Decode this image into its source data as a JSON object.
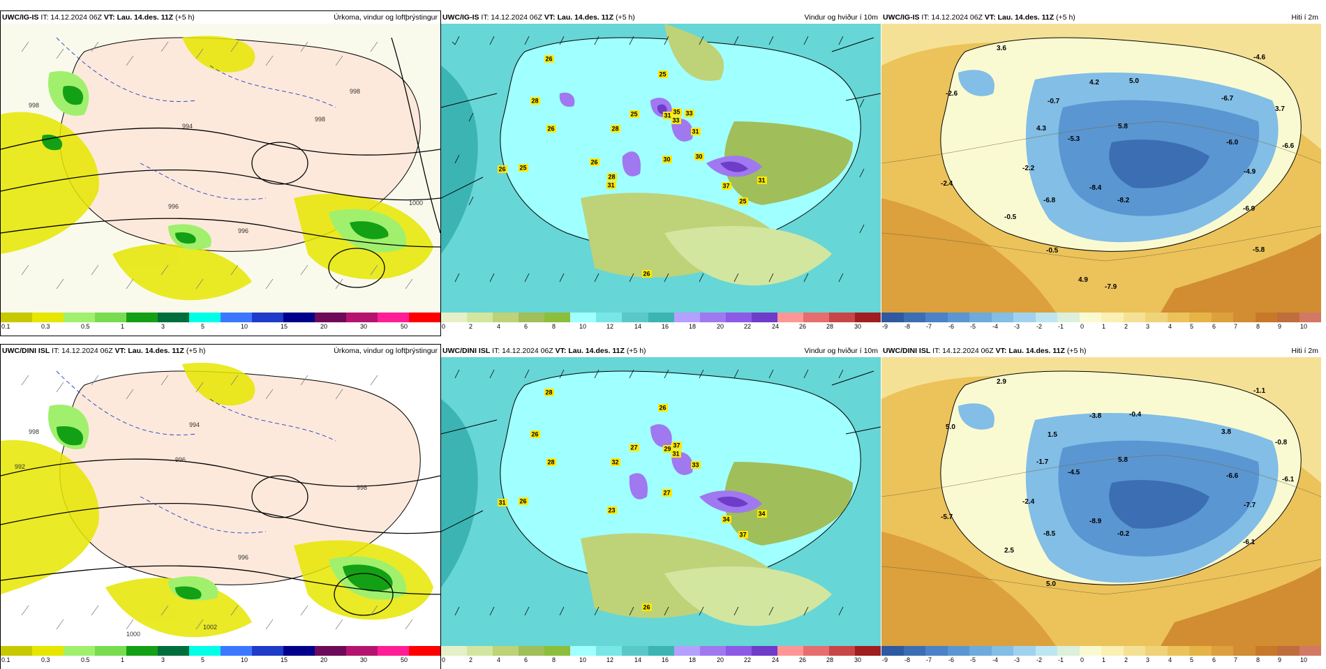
{
  "panels": [
    {
      "model": "UWC/IG-IS",
      "it": "IT: 14.12.2024 06Z",
      "vt_label": "VT:",
      "vt": "Lau. 14.des. 11Z",
      "lead": "(+5 h)",
      "title": "Úrkoma, vindur og loftþrýstingur"
    },
    {
      "model": "UWC/IG-IS",
      "it": "IT: 14.12.2024 06Z",
      "vt_label": "VT:",
      "vt": "Lau. 14.des. 11Z",
      "lead": "(+5 h)",
      "title": "Vindur og hviður í 10m"
    },
    {
      "model": "UWC/IG-IS",
      "it": "IT: 14.12.2024 06Z",
      "vt_label": "VT:",
      "vt": "Lau. 14.des. 11Z",
      "lead": "(+5 h)",
      "title": "Hiti í 2m"
    },
    {
      "model": "UWC/DINI ISL",
      "it": "IT: 14.12.2024 06Z",
      "vt_label": "VT:",
      "vt": "Lau. 14.des. 11Z",
      "lead": "(+5 h)",
      "title": "Úrkoma, vindur og loftþrýstingur"
    },
    {
      "model": "UWC/DINI ISL",
      "it": "IT: 14.12.2024 06Z",
      "vt_label": "VT:",
      "vt": "Lau. 14.des. 11Z",
      "lead": "(+5 h)",
      "title": "Vindur og hviður í 10m"
    },
    {
      "model": "UWC/DINI ISL",
      "it": "IT: 14.12.2024 06Z",
      "vt_label": "VT:",
      "vt": "Lau. 14.des. 11Z",
      "lead": "(+5 h)",
      "title": "Hiti í 2m"
    }
  ],
  "colorbars": {
    "precip": {
      "colors": [
        "#c8c800",
        "#e6e600",
        "#a0f06e",
        "#78dc50",
        "#14a014",
        "#006e3c",
        "#00ffe6",
        "#3c78ff",
        "#1e3cc8",
        "#00008c",
        "#6e0a5a",
        "#b4146e",
        "#ff1e96",
        "#ff0000"
      ],
      "ticks": [
        "0.1",
        "0.3",
        "0.5",
        "1",
        "3",
        "5",
        "10",
        "15",
        "20",
        "30",
        "50"
      ],
      "tick_positions": [
        0,
        1,
        2,
        3,
        4,
        5,
        6,
        7,
        8,
        9,
        10
      ]
    },
    "wind": {
      "colors": [
        "#e6f0c8",
        "#d2e6a0",
        "#bed278",
        "#a0be5a",
        "#8cbe3c",
        "#a0ffff",
        "#78e6e6",
        "#5ac8c8",
        "#3cb4b4",
        "#b4a0ff",
        "#a078f0",
        "#8c5ae6",
        "#6e3cc8",
        "#ff9696",
        "#e66e6e",
        "#c84646",
        "#a01e1e"
      ],
      "ticks": [
        "0",
        "2",
        "4",
        "6",
        "8",
        "10",
        "12",
        "14",
        "16",
        "18",
        "20",
        "22",
        "24",
        "26",
        "28",
        "30"
      ]
    },
    "temp": {
      "colors": [
        "#2d5aa0",
        "#3c6eb4",
        "#4b82c8",
        "#5a96d2",
        "#6eaadc",
        "#82bee6",
        "#a0d2f0",
        "#bee6f0",
        "#dcf0dc",
        "#fafad2",
        "#faf0b4",
        "#f5e196",
        "#f0d278",
        "#ebc35a",
        "#e6b446",
        "#dca03c",
        "#d28c32",
        "#c87828",
        "#be6e3c",
        "#d27864"
      ],
      "ticks": [
        "-9",
        "-8",
        "-7",
        "-6",
        "-5",
        "-4",
        "-3",
        "-2",
        "-1",
        "0",
        "1",
        "2",
        "3",
        "4",
        "5",
        "6",
        "7",
        "8",
        "9",
        "10"
      ]
    }
  },
  "wind_labels_top": [
    "26",
    "28",
    "25",
    "26",
    "25",
    "31",
    "28",
    "30",
    "35",
    "33",
    "31",
    "37",
    "31",
    "25",
    "26",
    "25",
    "28",
    "26",
    "30",
    "31",
    "33",
    "26"
  ],
  "wind_labels_bottom": [
    "28",
    "26",
    "26",
    "28",
    "27",
    "29",
    "32",
    "27",
    "37",
    "31",
    "33",
    "34",
    "34",
    "37",
    "31",
    "26",
    "23",
    "26"
  ],
  "temp_labels_top": [
    "3.6",
    "-2.6",
    "-0.7",
    "4.2",
    "5.0",
    "-4.6",
    "-6.7",
    "3.7",
    "4.3",
    "5.8",
    "-5.3",
    "-6.0",
    "-6.6",
    "-2.2",
    "-2.4",
    "-8.4",
    "-4.9",
    "-6.8",
    "-8.2",
    "-6.9",
    "-0.5",
    "-0.5",
    "-5.8",
    "4.9",
    "-7.9"
  ],
  "temp_labels_bottom": [
    "2.9",
    "5.0",
    "1.5",
    "-3.8",
    "-0.4",
    "-1.1",
    "3.8",
    "-0.8",
    "-1.7",
    "5.8",
    "-4.5",
    "-6.6",
    "-6.1",
    "-2.4",
    "-5.7",
    "-8.9",
    "-7.7",
    "-8.5",
    "-0.2",
    "-6.1",
    "2.5",
    "5.0"
  ],
  "pressure_labels_top": [
    "998",
    "994",
    "996",
    "998",
    "1000",
    "998",
    "996"
  ],
  "pressure_labels_bottom": [
    "998",
    "996",
    "994",
    "992",
    "996",
    "998",
    "1000",
    "1002"
  ]
}
